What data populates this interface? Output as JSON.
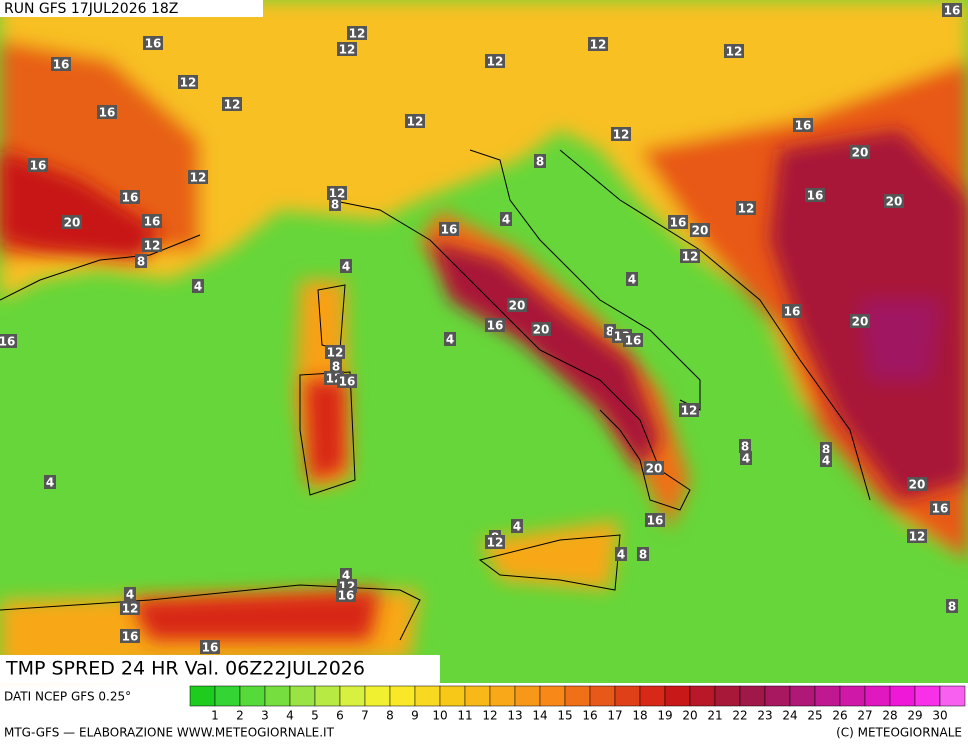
{
  "header": {
    "run": "RUN GFS 17JUL2026 18Z"
  },
  "map": {
    "title": "TMP SPRED 24 HR Val. 06Z22JUL2026",
    "contour_labels": [
      16,
      16,
      12,
      12,
      12,
      12,
      16,
      12,
      12,
      12,
      16,
      12,
      12,
      16,
      16,
      12,
      20,
      8,
      16,
      12,
      8,
      16,
      20,
      20,
      16,
      4,
      12,
      16,
      16,
      20,
      12,
      8,
      12,
      4,
      4,
      4,
      20,
      16,
      4,
      16,
      20,
      8,
      12,
      16,
      16,
      20,
      12,
      8,
      12,
      16,
      12,
      8,
      4,
      8,
      4,
      20,
      4,
      20,
      16,
      16,
      4,
      8,
      12,
      12,
      8,
      4,
      4,
      12,
      16,
      4,
      12,
      8,
      16,
      16
    ]
  },
  "legend": {
    "source": "DATI NCEP GFS 0.25°",
    "values": [
      1,
      2,
      3,
      4,
      5,
      6,
      7,
      8,
      9,
      10,
      11,
      12,
      13,
      14,
      15,
      16,
      17,
      18,
      19,
      20,
      21,
      22,
      23,
      24,
      25,
      26,
      27,
      28,
      29,
      30
    ],
    "colors": [
      "#1ecc1e",
      "#33d433",
      "#55da3a",
      "#77de40",
      "#99e444",
      "#b8ea44",
      "#d8f040",
      "#f0f030",
      "#f8e828",
      "#f8d820",
      "#f8c818",
      "#f8b818",
      "#f8a818",
      "#f89818",
      "#f88818",
      "#f07018",
      "#e85818",
      "#e04018",
      "#d82818",
      "#c81818",
      "#b81828",
      "#a81838",
      "#a01848",
      "#a81860",
      "#b01878",
      "#c01890",
      "#d018a8",
      "#e018c0",
      "#f018d8",
      "#f830e8",
      "#f860f0"
    ]
  },
  "footer": {
    "left": "MTG-GFS — ELABORAZIONE WWW.METEOGIORNALE.IT",
    "right": "(C) METEOGIORNALE"
  }
}
